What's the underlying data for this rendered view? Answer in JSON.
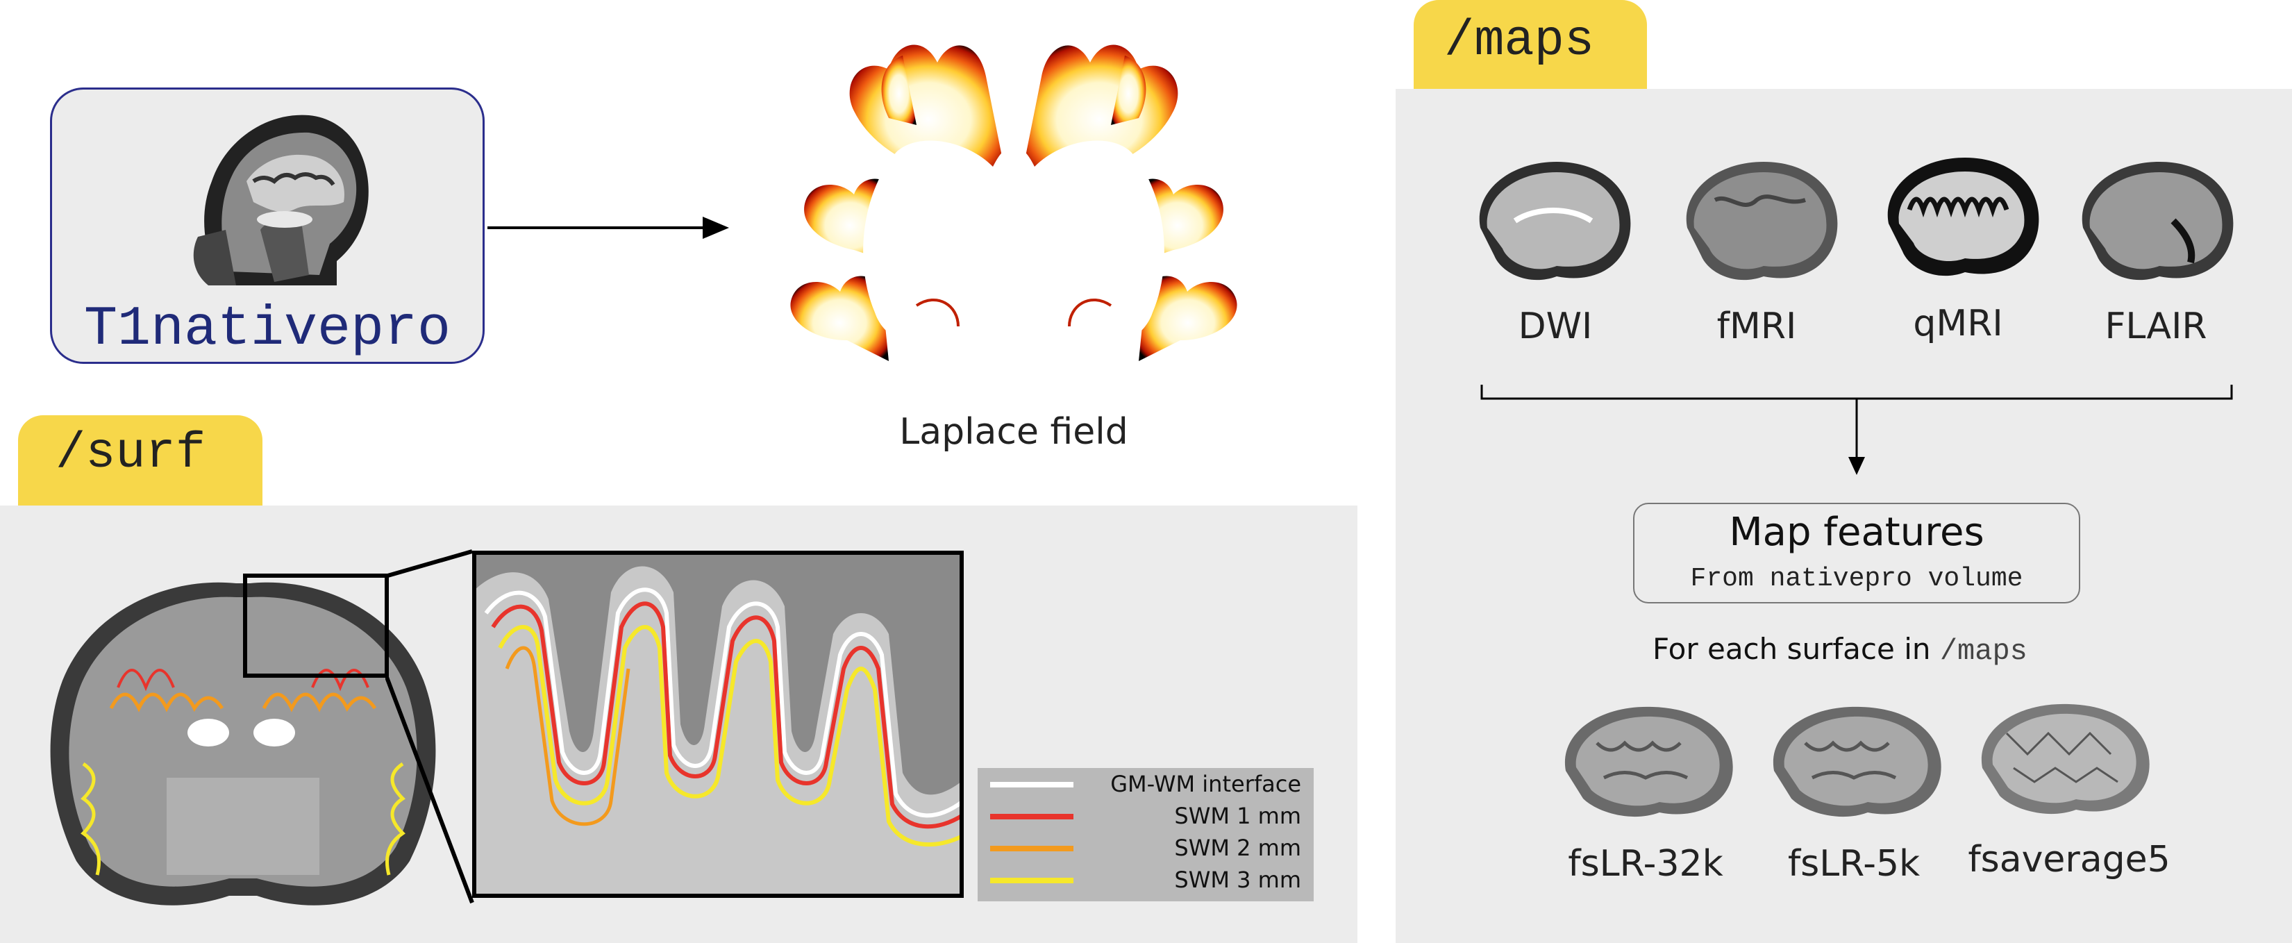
{
  "t1": {
    "label": "T1nativepro"
  },
  "laplace": {
    "label": "Laplace field"
  },
  "surf": {
    "tab_label": "/surf"
  },
  "legend": {
    "items": [
      {
        "label": "GM-WM interface",
        "color": "#ffffff"
      },
      {
        "label": "SWM 1 mm",
        "color": "#e8342c"
      },
      {
        "label": "SWM 2 mm",
        "color": "#f39a1d"
      },
      {
        "label": "SWM 3 mm",
        "color": "#f6e82a"
      }
    ]
  },
  "maps": {
    "tab_label": "/maps",
    "modalities": [
      "DWI",
      "fMRI",
      "qMRI",
      "FLAIR"
    ],
    "map_features_title": "Map features",
    "map_features_subtitle": "From nativepro volume",
    "for_each_prefix": "For each surface in",
    "for_each_path": "/maps",
    "surfaces": [
      "fsLR-32k",
      "fsLR-5k",
      "fsaverage5"
    ]
  },
  "colors": {
    "tab": "#f7d74a",
    "panel": "#ececec",
    "t1_border": "#2b2e8c",
    "t1_text": "#1f2a78"
  }
}
